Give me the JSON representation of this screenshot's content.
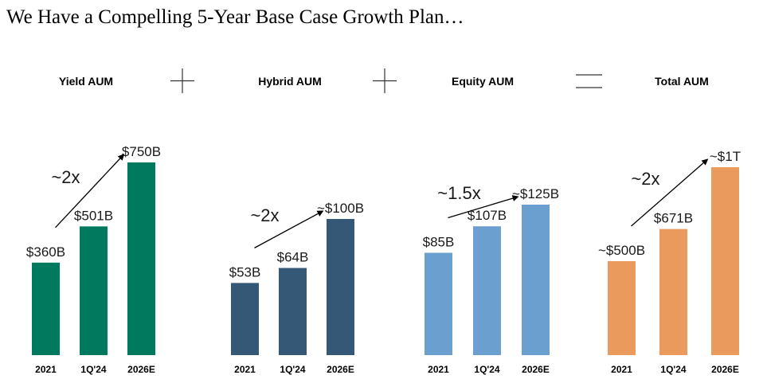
{
  "title": "We Have a Compelling 5-Year Base Case Growth Plan…",
  "operators": {
    "plus": "+",
    "equals": "="
  },
  "chart_data": [
    {
      "type": "bar",
      "title": "Yield AUM",
      "categories": [
        "2021",
        "1Q'24",
        "2026E"
      ],
      "values": [
        360,
        501,
        750
      ],
      "value_labels": [
        "$360B",
        "$501B",
        "$750B"
      ],
      "unit": "$B",
      "color": "#007A5E",
      "multiple": "~2x"
    },
    {
      "type": "bar",
      "title": "Hybrid AUM",
      "categories": [
        "2021",
        "1Q'24",
        "2026E"
      ],
      "values": [
        53,
        64,
        100
      ],
      "value_labels": [
        "$53B",
        "$64B",
        "~$100B"
      ],
      "unit": "$B",
      "color": "#365877",
      "multiple": "~2x"
    },
    {
      "type": "bar",
      "title": "Equity AUM",
      "categories": [
        "2021",
        "1Q'24",
        "2026E"
      ],
      "values": [
        85,
        107,
        125
      ],
      "value_labels": [
        "$85B",
        "$107B",
        "~$125B"
      ],
      "unit": "$B",
      "color": "#6A9FD0",
      "multiple": "~1.5x"
    },
    {
      "type": "bar",
      "title": "Total AUM",
      "categories": [
        "2021",
        "1Q'24",
        "2026E"
      ],
      "values": [
        500,
        671,
        1000
      ],
      "value_labels": [
        "~$500B",
        "$671B",
        "~$1T"
      ],
      "unit": "$B",
      "color": "#EB9A5E",
      "multiple": "~2x"
    }
  ]
}
